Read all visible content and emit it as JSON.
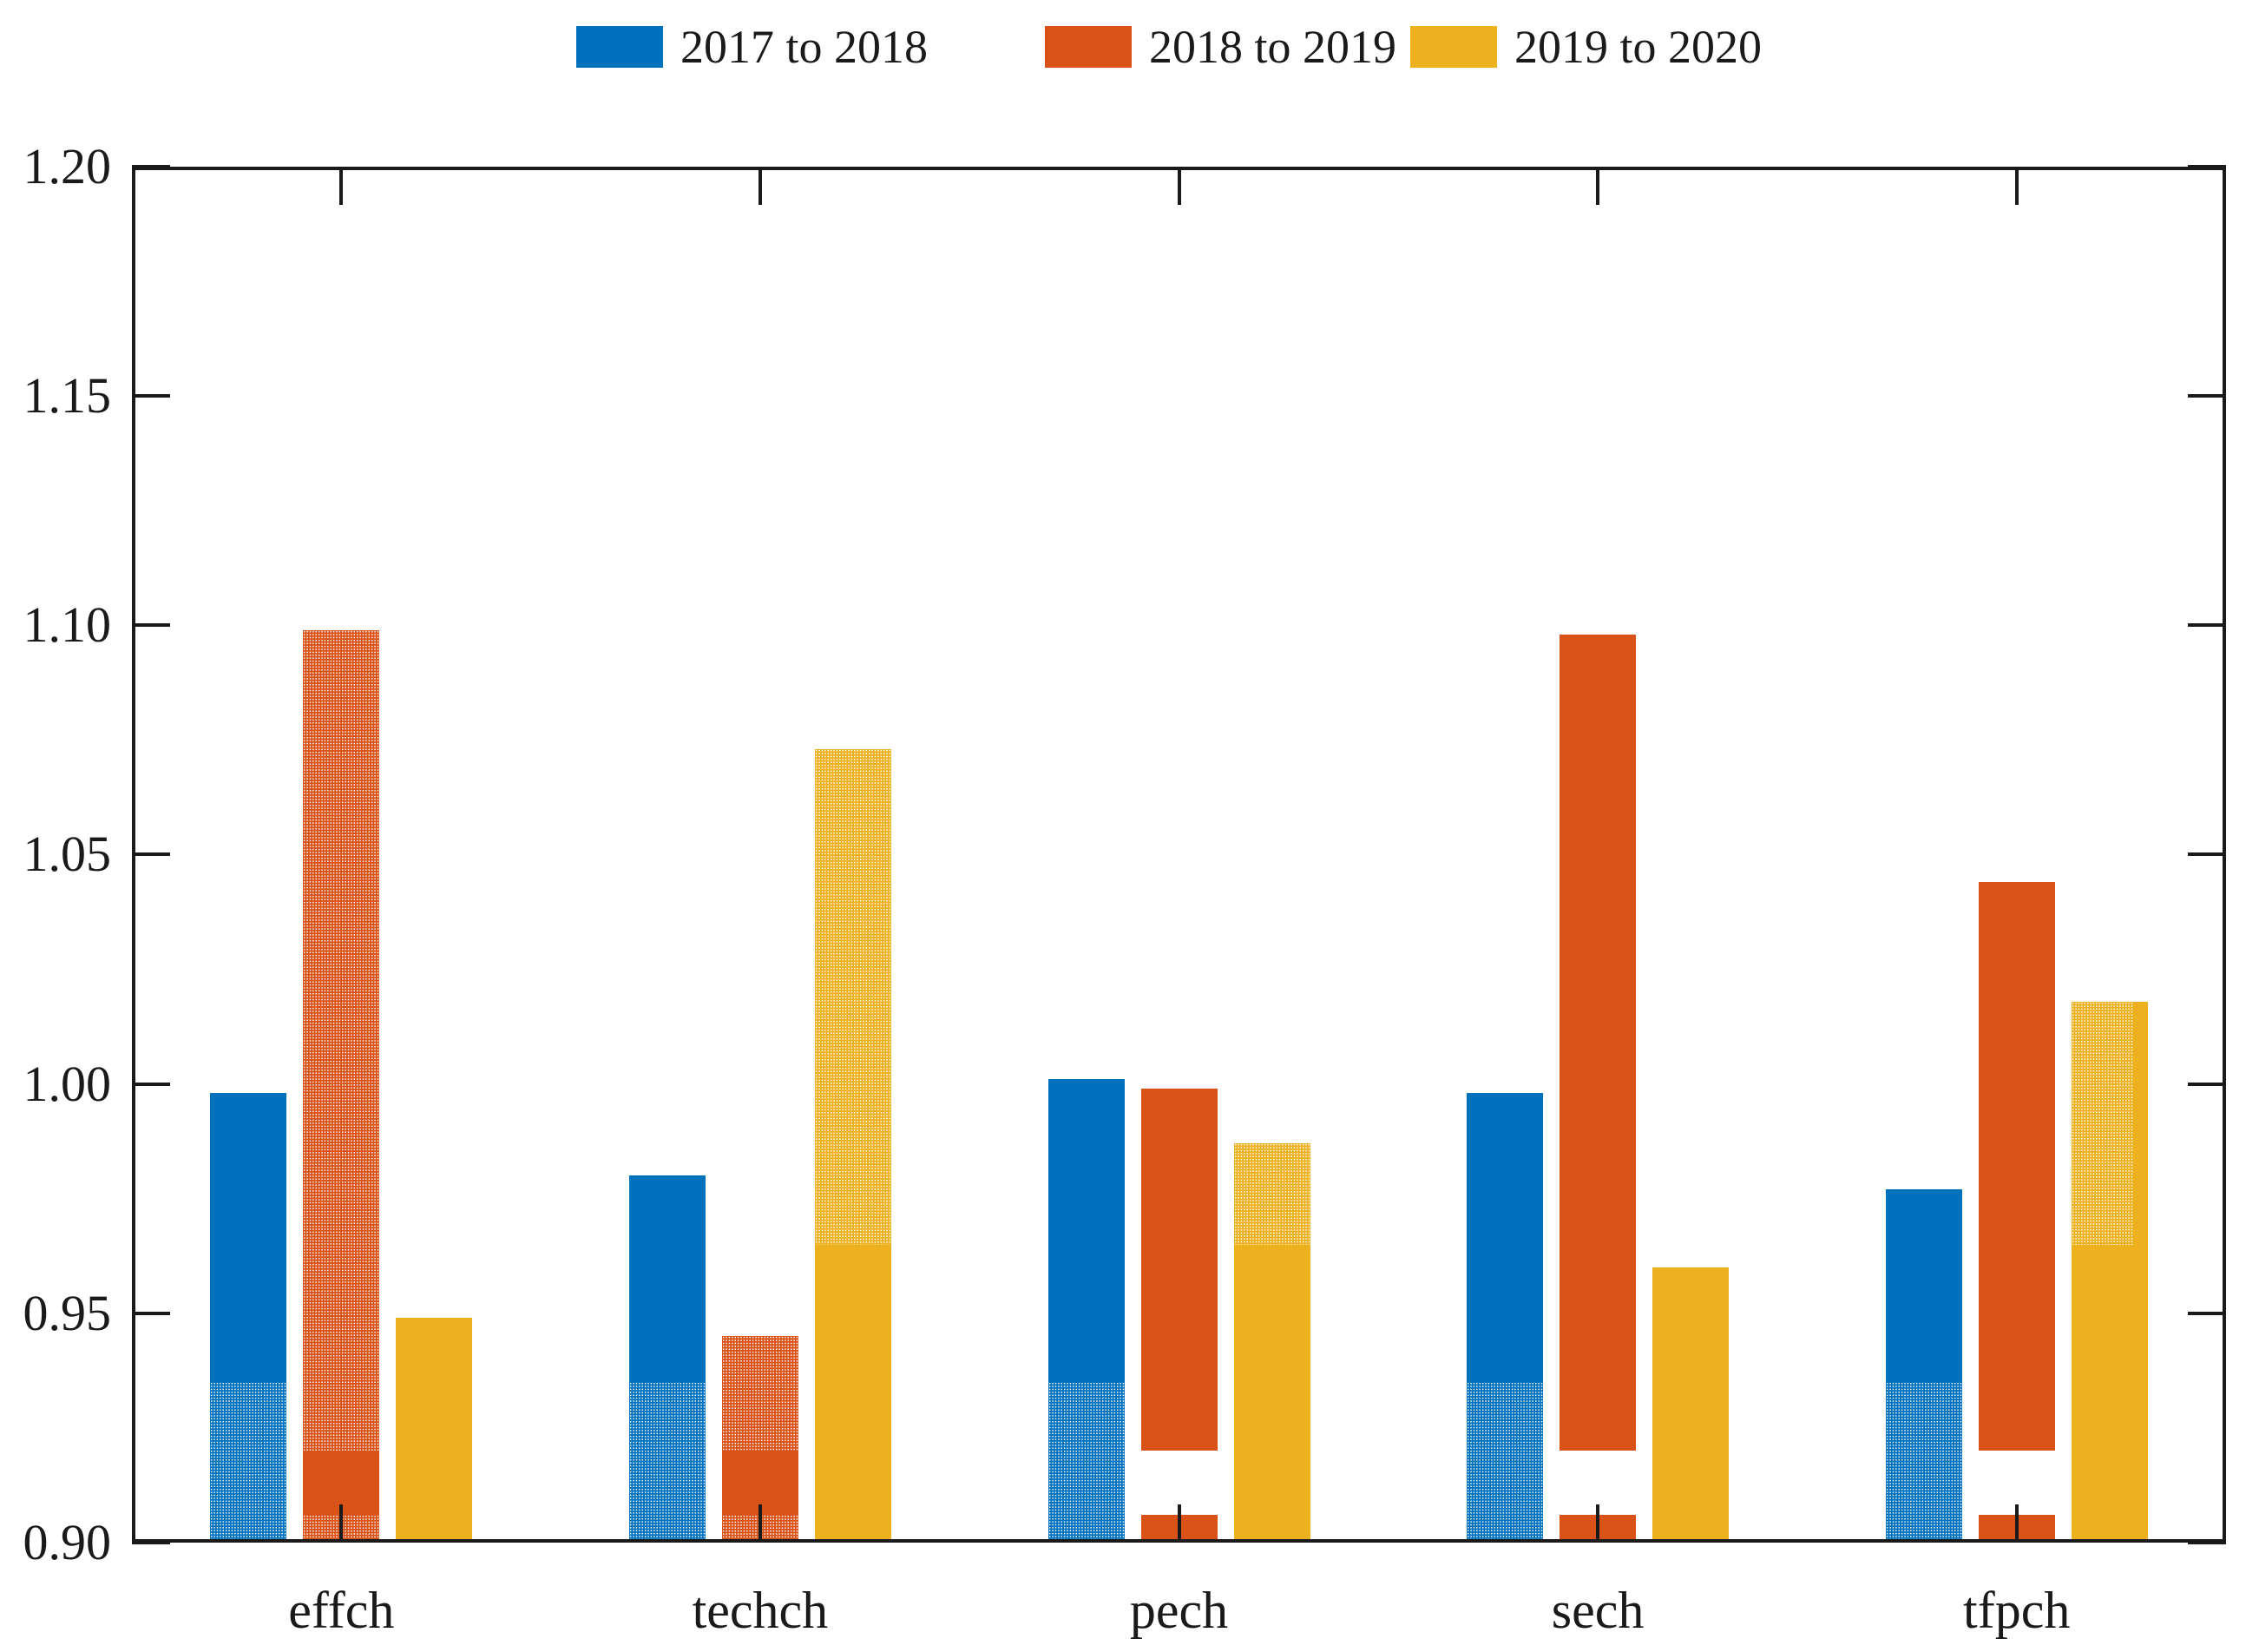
{
  "legend": {
    "items": [
      {
        "label": "2017 to 2018",
        "color": "#0072BD"
      },
      {
        "label": "2018 to 2019",
        "color": "#D95319"
      },
      {
        "label": "2019 to 2020",
        "color": "#EDB120"
      }
    ]
  },
  "axes": {
    "y_tick_labels": [
      "1.20",
      "1.15",
      "1.10",
      "1.05",
      "1.00",
      "0.95",
      "0.90"
    ],
    "y_tick_values": [
      1.2,
      1.15,
      1.1,
      1.05,
      1.0,
      0.95,
      0.9
    ],
    "x_labels": [
      "effch",
      "techch",
      "pech",
      "sech",
      "tfpch"
    ]
  },
  "chart_data": {
    "type": "bar",
    "title": "",
    "xlabel": "",
    "ylabel": "",
    "ylim": [
      0.9,
      1.2
    ],
    "grid": false,
    "legend_position": "top-horizontal",
    "categories": [
      "effch",
      "techch",
      "pech",
      "sech",
      "tfpch"
    ],
    "series": [
      {
        "name": "2017 to 2018",
        "color": "#0072BD",
        "values": [
          0.998,
          0.98,
          1.001,
          0.998,
          0.977
        ]
      },
      {
        "name": "2018 to 2019",
        "color": "#D95319",
        "values": [
          1.099,
          0.945,
          0.999,
          1.098,
          1.044
        ]
      },
      {
        "name": "2019 to 2020",
        "color": "#EDB120",
        "values": [
          0.949,
          1.073,
          0.987,
          0.96,
          1.018
        ]
      }
    ],
    "pattern_boundaries": {
      "blue_dotted_below": 0.935,
      "orange_solid_band": [
        0.906,
        0.92
      ],
      "orange_break_gap": [
        0.906,
        0.92
      ],
      "yellow_dotted_above": 0.965
    },
    "bars": [
      {
        "category": "effch",
        "series": 0,
        "segments": [
          [
            0.9,
            0.935,
            "dotted"
          ],
          [
            0.935,
            0.998,
            "solid"
          ]
        ]
      },
      {
        "category": "effch",
        "series": 1,
        "segments": [
          [
            0.9,
            0.906,
            "dotted"
          ],
          [
            0.906,
            0.92,
            "solid"
          ],
          [
            0.92,
            1.099,
            "dotted"
          ]
        ]
      },
      {
        "category": "effch",
        "series": 2,
        "segments": [
          [
            0.9,
            0.949,
            "solid"
          ]
        ]
      },
      {
        "category": "techch",
        "series": 0,
        "segments": [
          [
            0.9,
            0.935,
            "dotted"
          ],
          [
            0.935,
            0.98,
            "solid"
          ]
        ]
      },
      {
        "category": "techch",
        "series": 1,
        "segments": [
          [
            0.9,
            0.906,
            "dotted"
          ],
          [
            0.906,
            0.92,
            "solid"
          ],
          [
            0.92,
            0.945,
            "dotted"
          ]
        ]
      },
      {
        "category": "techch",
        "series": 2,
        "segments": [
          [
            0.9,
            0.965,
            "solid"
          ],
          [
            0.965,
            1.073,
            "dotted"
          ]
        ]
      },
      {
        "category": "pech",
        "series": 0,
        "segments": [
          [
            0.9,
            0.935,
            "dotted"
          ],
          [
            0.935,
            1.001,
            "solid"
          ]
        ]
      },
      {
        "category": "pech",
        "series": 1,
        "segments": [
          [
            0.9,
            0.906,
            "solid"
          ],
          [
            0.92,
            0.999,
            "solid"
          ]
        ]
      },
      {
        "category": "pech",
        "series": 2,
        "segments": [
          [
            0.9,
            0.965,
            "solid"
          ],
          [
            0.965,
            0.987,
            "dotted"
          ]
        ]
      },
      {
        "category": "sech",
        "series": 0,
        "segments": [
          [
            0.9,
            0.935,
            "dotted"
          ],
          [
            0.935,
            0.998,
            "solid"
          ]
        ]
      },
      {
        "category": "sech",
        "series": 1,
        "segments": [
          [
            0.9,
            0.906,
            "solid"
          ],
          [
            0.92,
            1.098,
            "solid"
          ]
        ]
      },
      {
        "category": "sech",
        "series": 2,
        "segments": [
          [
            0.9,
            0.96,
            "solid"
          ]
        ]
      },
      {
        "category": "tfpch",
        "series": 0,
        "segments": [
          [
            0.9,
            0.935,
            "dotted"
          ],
          [
            0.935,
            0.977,
            "solid"
          ]
        ]
      },
      {
        "category": "tfpch",
        "series": 1,
        "segments": [
          [
            0.9,
            0.906,
            "solid"
          ],
          [
            0.92,
            1.044,
            "solid"
          ]
        ]
      },
      {
        "category": "tfpch",
        "series": 2,
        "segments": [
          [
            0.9,
            0.965,
            "solid"
          ],
          [
            0.965,
            1.018,
            "dotted"
          ]
        ],
        "right_sliver": [
          0.965,
          1.018
        ]
      }
    ]
  }
}
